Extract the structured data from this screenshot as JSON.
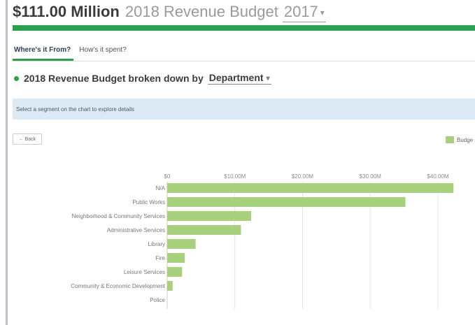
{
  "header": {
    "amount": "$111.00 Million",
    "subtitle": "2018 Revenue Budget",
    "year": "2017"
  },
  "tabs": [
    {
      "label": "Where's it From?",
      "active": true
    },
    {
      "label": "How's it spent?",
      "active": false
    }
  ],
  "breakdown": {
    "label": "2018 Revenue Budget broken down by",
    "dimension": "Department"
  },
  "info_text": "Select a segment on the chart to explore details",
  "back_label": "← Back",
  "legend_label": "Budge",
  "colors": {
    "accent": "#2e9e4f",
    "bar": "#a8d17e",
    "info_bg": "#dbeaf4"
  },
  "chart_data": {
    "type": "bar",
    "orientation": "horizontal",
    "categories": [
      "N/A",
      "Public Works",
      "Neighborhood & Community Services",
      "Administrative Services",
      "Library",
      "Fire",
      "Leisure Services",
      "Community & Economic Development",
      "Police"
    ],
    "series": [
      {
        "name": "Budge",
        "values": [
          42.3,
          35.2,
          12.4,
          10.9,
          4.2,
          2.6,
          2.2,
          0.8,
          0.0
        ]
      }
    ],
    "x_ticks": [
      "$0",
      "$10.00M",
      "$20.00M",
      "$30.00M",
      "$40.00M"
    ],
    "xlim": [
      0,
      43
    ],
    "grid": true,
    "legend_position": "top-right"
  }
}
